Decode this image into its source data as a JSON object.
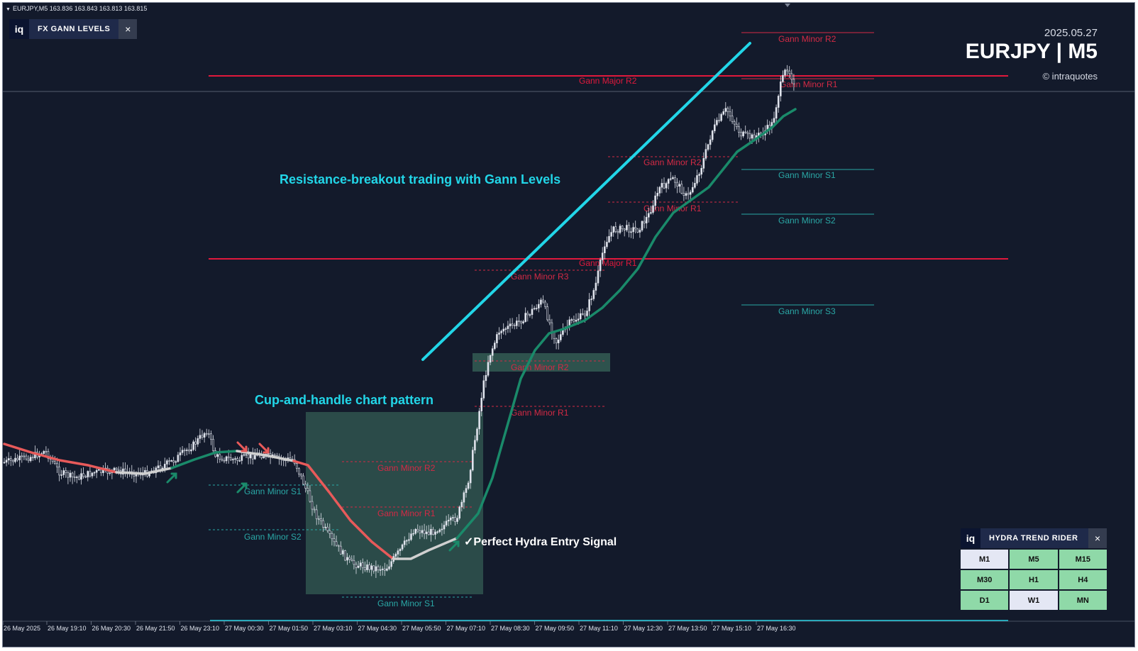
{
  "header": {
    "symbol_line": "EURJPY,M5  163.836 163.843 163.813 163.815"
  },
  "fx_panel": {
    "logo": "iq",
    "title": "FX GANN LEVELS",
    "close": "×"
  },
  "brand": {
    "date": "2025.05.27",
    "symbol": "EURJPY | M5",
    "copyright": "© intraquotes"
  },
  "annotations": {
    "resistance_breakout": "Resistance-breakout trading with Gann Levels",
    "cup_handle": "Cup-and-handle chart pattern",
    "entry_signal": "✓Perfect Hydra Entry Signal"
  },
  "hydra_panel": {
    "logo": "iq",
    "title": "HYDRA TREND RIDER",
    "close": "×",
    "timeframes": [
      {
        "label": "M1",
        "style": "alt"
      },
      {
        "label": "M5",
        "style": "green"
      },
      {
        "label": "M15",
        "style": "green"
      },
      {
        "label": "M30",
        "style": "green"
      },
      {
        "label": "H1",
        "style": "green"
      },
      {
        "label": "H4",
        "style": "green"
      },
      {
        "label": "D1",
        "style": "green"
      },
      {
        "label": "W1",
        "style": "alt"
      },
      {
        "label": "MN",
        "style": "green"
      }
    ]
  },
  "chart_data": {
    "type": "candlestick",
    "symbol": "EURJPY",
    "timeframe": "M5",
    "x_tick_labels": [
      "26 May 2025",
      "26 May 19:10",
      "26 May 20:30",
      "26 May 21:50",
      "26 May 23:10",
      "27 May 00:30",
      "27 May 01:50",
      "27 May 03:10",
      "27 May 04:30",
      "27 May 05:50",
      "27 May 07:10",
      "27 May 08:30",
      "27 May 09:50",
      "27 May 11:10",
      "27 May 12:30",
      "27 May 13:50",
      "27 May 15:10",
      "27 May 16:30"
    ],
    "colors": {
      "background": "#131a2b",
      "major_level": "#e0193c",
      "minor_resistance": "#d42a45",
      "minor_support": "#2aa8a6",
      "trendline": "#22d6e8",
      "ma_up": "#1a8a6a",
      "ma_down": "#e85a5a",
      "ma_neutral": "#d0d0d0",
      "candles": "#dfe3ec"
    },
    "major_levels": [
      {
        "label": "Gann Major R2"
      },
      {
        "label": "Gann Major R1"
      }
    ],
    "minor_levels": [
      {
        "label": "Gann Minor R2",
        "group": "current-day"
      },
      {
        "label": "Gann Minor R1",
        "group": "current-day"
      },
      {
        "label": "Gann Minor S1",
        "group": "current-day"
      },
      {
        "label": "Gann Minor S2",
        "group": "current-day"
      },
      {
        "label": "Gann Minor S3",
        "group": "current-day"
      },
      {
        "label": "Gann Minor R2",
        "group": "upper-mid"
      },
      {
        "label": "Gann Minor R1",
        "group": "upper-mid"
      },
      {
        "label": "Gann Minor R3",
        "group": "mid"
      },
      {
        "label": "Gann Minor R2",
        "group": "mid"
      },
      {
        "label": "Gann Minor R1",
        "group": "mid"
      },
      {
        "label": "Gann Minor R2",
        "group": "cup"
      },
      {
        "label": "Gann Minor R1",
        "group": "cup"
      },
      {
        "label": "Gann Minor S1",
        "group": "cup"
      },
      {
        "label": "Gann Minor S1",
        "group": "early"
      },
      {
        "label": "Gann Minor S2",
        "group": "early"
      }
    ],
    "pattern_boxes": [
      {
        "label": "cup-and-handle"
      },
      {
        "label": "breakout-retest"
      }
    ],
    "signal_arrows": [
      {
        "direction": "up",
        "color": "green"
      },
      {
        "direction": "up",
        "color": "green"
      },
      {
        "direction": "down",
        "color": "red"
      },
      {
        "direction": "down",
        "color": "red"
      },
      {
        "direction": "up",
        "color": "green"
      }
    ]
  }
}
